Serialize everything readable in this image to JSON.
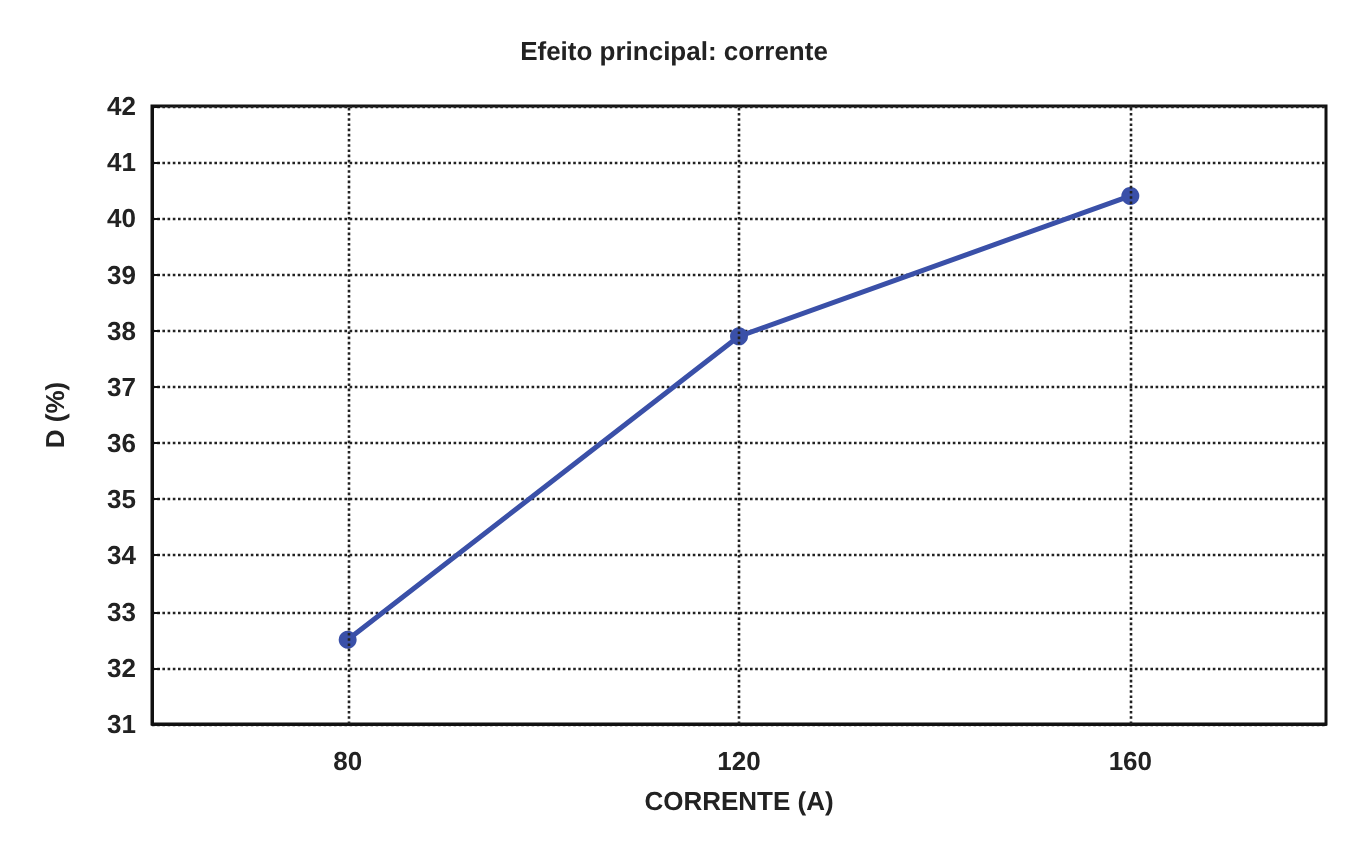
{
  "chart_data": {
    "type": "line",
    "title": "Efeito principal: corrente",
    "xlabel": "CORRENTE (A)",
    "ylabel": "D (%)",
    "categories": [
      "80",
      "120",
      "160"
    ],
    "series": [
      {
        "color": "#3a50a8",
        "values": [
          32.5,
          37.9,
          40.4
        ]
      }
    ],
    "ylim": [
      31,
      42
    ],
    "yticks": [
      31,
      32,
      33,
      34,
      35,
      36,
      37,
      38,
      39,
      40,
      41,
      42
    ],
    "grid": true,
    "marker": "circle",
    "line_style": "solid"
  }
}
